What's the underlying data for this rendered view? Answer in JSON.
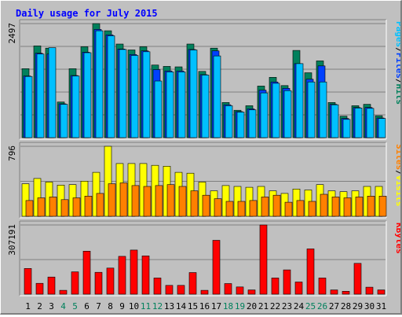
{
  "chart_data": {
    "type": "bar",
    "title": "Daily usage for July 2015",
    "categories": [
      "1",
      "2",
      "3",
      "4",
      "5",
      "6",
      "7",
      "8",
      "9",
      "10",
      "11",
      "12",
      "13",
      "14",
      "15",
      "16",
      "17",
      "18",
      "19",
      "20",
      "21",
      "22",
      "23",
      "24",
      "25",
      "26",
      "27",
      "28",
      "29",
      "30",
      "31"
    ],
    "weekend_days": [
      "4",
      "5",
      "11",
      "12",
      "18",
      "19",
      "25",
      "26"
    ],
    "colors": {
      "title": "#0000ff",
      "hits": "#00805c",
      "files": "#0040ff",
      "pages": "#00c0ff",
      "visits": "#ffff00",
      "sites": "#ff8000",
      "kbytes": "#ff0000",
      "weekday_label": "#000000",
      "weekend_label": "#00805c",
      "panel_bg": "#c0c0c0",
      "gridline": "#808080"
    },
    "panels": [
      {
        "id": "hits-files-pages",
        "ymax_label": "2497",
        "ymax": 2497,
        "legend": [
          {
            "text": "Pages",
            "color": "#00c0ff"
          },
          {
            "text": "/",
            "color": "#000000"
          },
          {
            "text": "Files",
            "color": "#0040ff"
          },
          {
            "text": "/",
            "color": "#000000"
          },
          {
            "text": "Hits",
            "color": "#00805c"
          }
        ],
        "series": [
          {
            "name": "Hits",
            "color": "#00805c",
            "values": [
              1510,
              2010,
              1960,
              780,
              1510,
              1990,
              2497,
              2340,
              2050,
              1920,
              1990,
              1590,
              1560,
              1550,
              2050,
              1450,
              1960,
              770,
              600,
              700,
              1130,
              1320,
              1140,
              1910,
              1420,
              1680,
              770,
              470,
              700,
              730,
              480
            ]
          },
          {
            "name": "Files",
            "color": "#0040ff",
            "values": [
              1350,
              1850,
              1830,
              740,
              1360,
              1870,
              2370,
              2250,
              1940,
              1820,
              1900,
              1490,
              1460,
              1460,
              1930,
              1380,
              1900,
              720,
              570,
              630,
              1040,
              1220,
              1080,
              1620,
              1280,
              1570,
              730,
              420,
              660,
              660,
              430
            ]
          },
          {
            "name": "Pages",
            "color": "#00c0ff",
            "values": [
              1340,
              1830,
              1970,
              730,
              1350,
              1860,
              2340,
              2230,
              1930,
              1800,
              1880,
              1240,
              1440,
              1440,
              1920,
              1370,
              1790,
              700,
              560,
              610,
              980,
              1190,
              1030,
              1620,
              1220,
              1220,
              720,
              400,
              650,
              640,
              420
            ]
          }
        ]
      },
      {
        "id": "visits-sites",
        "ymax_label": "796",
        "ymax": 796,
        "legend": [
          {
            "text": "Sites",
            "color": "#ff8000"
          },
          {
            "text": "/",
            "color": "#000000"
          },
          {
            "text": "Visits",
            "color": "#ffff00"
          }
        ],
        "series": [
          {
            "name": "Visits",
            "color": "#ffff00",
            "values": [
              370,
              430,
              390,
              355,
              360,
              400,
              500,
              796,
              600,
              600,
              600,
              580,
              570,
              500,
              490,
              390,
              290,
              350,
              340,
              330,
              340,
              290,
              260,
              310,
              300,
              360,
              290,
              280,
              290,
              340,
              340
            ]
          },
          {
            "name": "Sites",
            "color": "#ff8000",
            "values": [
              180,
              210,
              220,
              190,
              210,
              230,
              260,
              370,
              380,
              350,
              340,
              350,
              360,
              340,
              290,
              240,
              200,
              170,
              170,
              180,
              220,
              240,
              160,
              180,
              170,
              250,
              220,
              210,
              220,
              230,
              230
            ]
          }
        ]
      },
      {
        "id": "kbytes",
        "ymax_label": "307191",
        "ymax": 307191,
        "legend": [
          {
            "text": "KBytes",
            "color": "#ff0000"
          }
        ],
        "series": [
          {
            "name": "KBytes",
            "color": "#ff0000",
            "values": [
              114000,
              48000,
              76000,
              17000,
              99000,
              191000,
              97000,
              116000,
              168000,
              196000,
              170000,
              72000,
              39000,
              39000,
              96000,
              17000,
              239000,
              47000,
              32000,
              19000,
              307191,
              72000,
              108000,
              54000,
              201000,
              72000,
              19000,
              13000,
              137000,
              31000,
              19000
            ]
          }
        ]
      }
    ]
  }
}
